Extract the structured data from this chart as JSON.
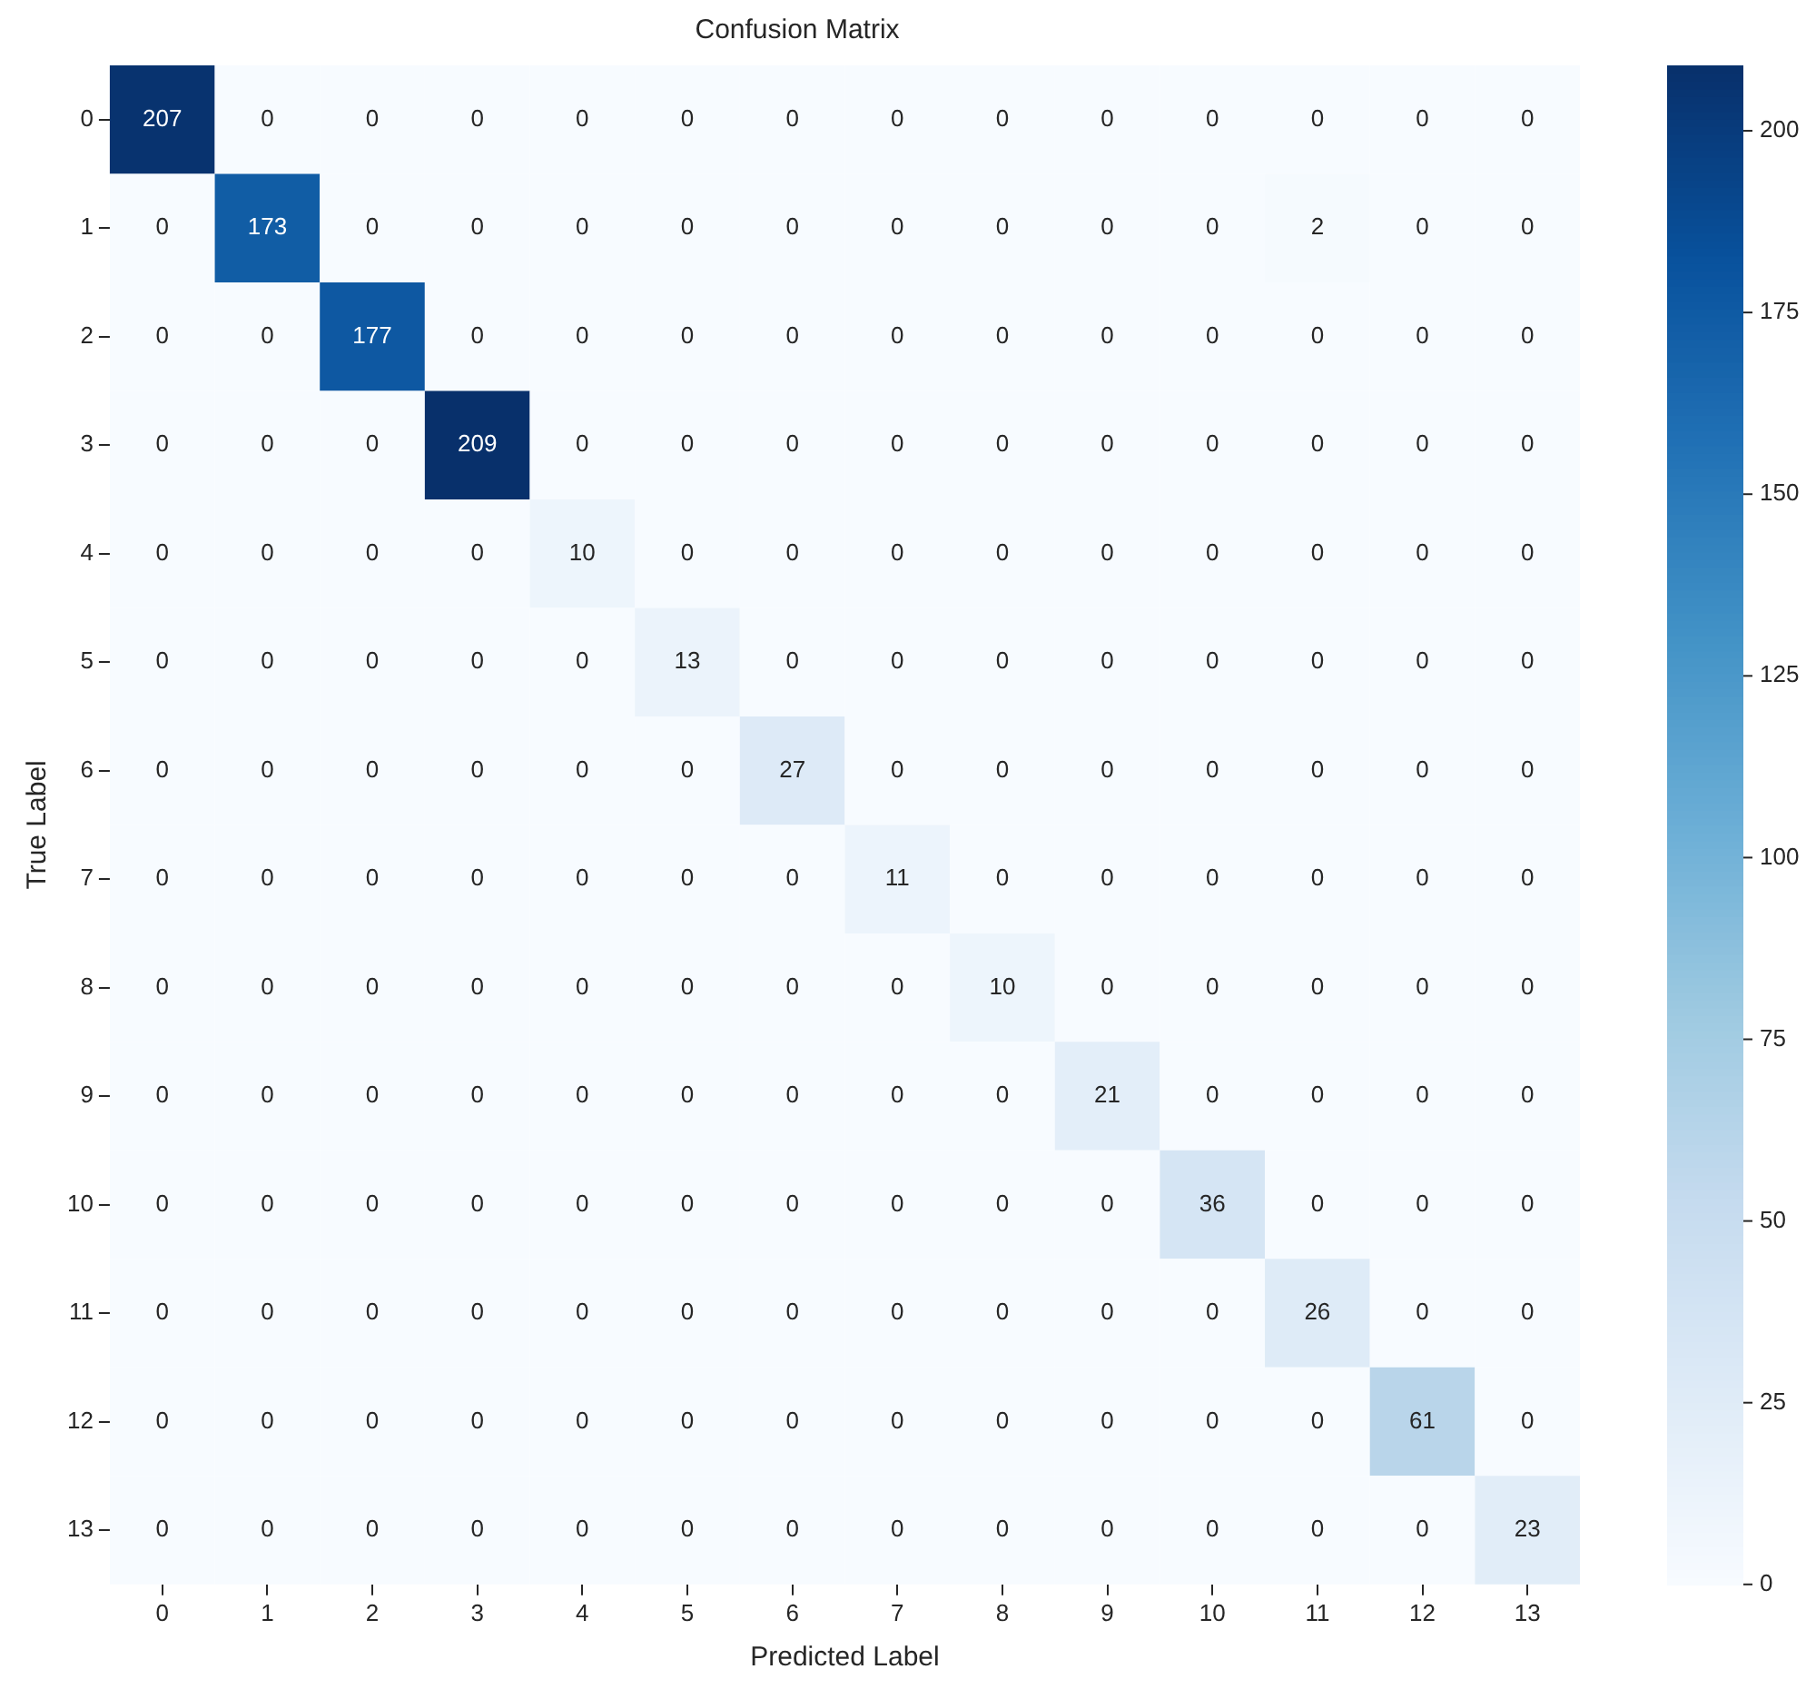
{
  "chart_data": {
    "type": "heatmap",
    "title": "Confusion Matrix",
    "xlabel": "Predicted Label",
    "ylabel": "True Label",
    "categories": [
      "0",
      "1",
      "2",
      "3",
      "4",
      "5",
      "6",
      "7",
      "8",
      "9",
      "10",
      "11",
      "12",
      "13"
    ],
    "y_categories": [
      "0",
      "1",
      "2",
      "3",
      "4",
      "5",
      "6",
      "7",
      "8",
      "9",
      "10",
      "11",
      "12",
      "13"
    ],
    "cells": [
      [
        207,
        0,
        0,
        0,
        0,
        0,
        0,
        0,
        0,
        0,
        0,
        0,
        0,
        0
      ],
      [
        0,
        173,
        0,
        0,
        0,
        0,
        0,
        0,
        0,
        0,
        0,
        2,
        0,
        0
      ],
      [
        0,
        0,
        177,
        0,
        0,
        0,
        0,
        0,
        0,
        0,
        0,
        0,
        0,
        0
      ],
      [
        0,
        0,
        0,
        209,
        0,
        0,
        0,
        0,
        0,
        0,
        0,
        0,
        0,
        0
      ],
      [
        0,
        0,
        0,
        0,
        10,
        0,
        0,
        0,
        0,
        0,
        0,
        0,
        0,
        0
      ],
      [
        0,
        0,
        0,
        0,
        0,
        13,
        0,
        0,
        0,
        0,
        0,
        0,
        0,
        0
      ],
      [
        0,
        0,
        0,
        0,
        0,
        0,
        27,
        0,
        0,
        0,
        0,
        0,
        0,
        0
      ],
      [
        0,
        0,
        0,
        0,
        0,
        0,
        0,
        11,
        0,
        0,
        0,
        0,
        0,
        0
      ],
      [
        0,
        0,
        0,
        0,
        0,
        0,
        0,
        0,
        10,
        0,
        0,
        0,
        0,
        0
      ],
      [
        0,
        0,
        0,
        0,
        0,
        0,
        0,
        0,
        0,
        21,
        0,
        0,
        0,
        0
      ],
      [
        0,
        0,
        0,
        0,
        0,
        0,
        0,
        0,
        0,
        0,
        36,
        0,
        0,
        0
      ],
      [
        0,
        0,
        0,
        0,
        0,
        0,
        0,
        0,
        0,
        0,
        0,
        26,
        0,
        0
      ],
      [
        0,
        0,
        0,
        0,
        0,
        0,
        0,
        0,
        0,
        0,
        0,
        0,
        61,
        0
      ],
      [
        0,
        0,
        0,
        0,
        0,
        0,
        0,
        0,
        0,
        0,
        0,
        0,
        0,
        23
      ]
    ],
    "data_labels": true,
    "clim": [
      0,
      209
    ],
    "cticks": [
      0,
      25,
      50,
      75,
      100,
      125,
      150,
      175,
      200
    ]
  }
}
